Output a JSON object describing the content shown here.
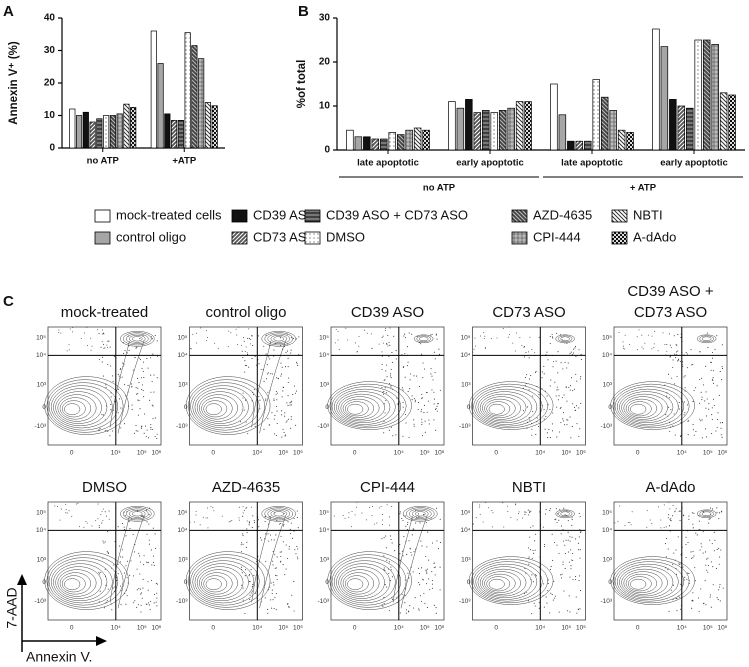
{
  "chart_data": [
    {
      "type": "bar",
      "panel": "A",
      "y_label": "Annexin V⁺ (%)",
      "categories": [
        "no ATP",
        "+ATP"
      ],
      "ylim": [
        0,
        40
      ],
      "yticks": [
        0,
        10,
        20,
        30,
        40
      ],
      "legend": "bottom",
      "series": [
        {
          "name": "mock-treated cells",
          "color": "#ffffff",
          "pattern": "none",
          "pattern_color": "#000000",
          "values": [
            12,
            36
          ]
        },
        {
          "name": "control oligo",
          "color": "#a6a6a6",
          "pattern": "none",
          "pattern_color": "#000000",
          "values": [
            10,
            26
          ]
        },
        {
          "name": "CD39  ASO",
          "color": "#111111",
          "pattern": "none",
          "pattern_color": "#000000",
          "values": [
            11,
            10.5
          ]
        },
        {
          "name": "CD73 ASO",
          "color": "#555555",
          "pattern": "diagonal",
          "pattern_color": "#ffffff",
          "values": [
            8,
            8.5
          ]
        },
        {
          "name": "CD39 ASO + CD73  ASO",
          "color": "#777777",
          "pattern": "hstripe",
          "pattern_color": "#222222",
          "values": [
            9,
            8.5
          ]
        },
        {
          "name": "DMSO",
          "color": "#ffffff",
          "pattern": "dots",
          "pattern_color": "#444444",
          "values": [
            10,
            35.5
          ]
        },
        {
          "name": "AZD-4635",
          "color": "#444444",
          "pattern": "antidiagonal",
          "pattern_color": "#bbbbbb",
          "values": [
            10,
            31.5
          ]
        },
        {
          "name": "CPI-444",
          "color": "#bbbbbb",
          "pattern": "crosshatch",
          "pattern_color": "#444444",
          "values": [
            10.5,
            27.5
          ]
        },
        {
          "name": "NBTI",
          "color": "#ffffff",
          "pattern": "antidiagonal",
          "pattern_color": "#333333",
          "values": [
            13.5,
            14
          ]
        },
        {
          "name": "A-dAdo",
          "color": "#111111",
          "pattern": "check",
          "pattern_color": "#dddddd",
          "values": [
            12.5,
            13
          ]
        }
      ]
    },
    {
      "type": "bar",
      "panel": "B",
      "y_label": "%of total",
      "categories": [
        "late apoptotic",
        "early apoptotic",
        "late apoptotic",
        "early apoptotic"
      ],
      "groups": [
        "no ATP",
        "+ ATP"
      ],
      "ylim": [
        0,
        30
      ],
      "yticks": [
        0,
        10,
        20,
        30
      ],
      "series": [
        {
          "color": "#ffffff",
          "pattern": "none",
          "pattern_color": "#000000",
          "values": [
            4.5,
            11,
            15,
            27.5
          ]
        },
        {
          "color": "#a6a6a6",
          "pattern": "none",
          "pattern_color": "#000000",
          "values": [
            3,
            9.5,
            8,
            23.5
          ]
        },
        {
          "color": "#111111",
          "pattern": "none",
          "pattern_color": "#000000",
          "values": [
            3,
            11.5,
            2,
            11.5
          ]
        },
        {
          "color": "#555555",
          "pattern": "diagonal",
          "pattern_color": "#ffffff",
          "values": [
            2.5,
            8.5,
            2,
            10
          ]
        },
        {
          "color": "#777777",
          "pattern": "hstripe",
          "pattern_color": "#222222",
          "values": [
            2.5,
            9,
            2,
            9.5
          ]
        },
        {
          "color": "#ffffff",
          "pattern": "dots",
          "pattern_color": "#444444",
          "values": [
            4,
            8.5,
            16,
            25
          ]
        },
        {
          "color": "#444444",
          "pattern": "antidiagonal",
          "pattern_color": "#bbbbbb",
          "values": [
            3.5,
            9,
            12,
            25
          ]
        },
        {
          "color": "#bbbbbb",
          "pattern": "crosshatch",
          "pattern_color": "#444444",
          "values": [
            4.5,
            9.5,
            9,
            24
          ]
        },
        {
          "color": "#ffffff",
          "pattern": "antidiagonal",
          "pattern_color": "#333333",
          "values": [
            5,
            11,
            4.5,
            13
          ]
        },
        {
          "color": "#111111",
          "pattern": "check",
          "pattern_color": "#dddddd",
          "values": [
            4.5,
            11,
            4,
            12.5
          ]
        }
      ]
    }
  ],
  "panel_c": {
    "panel": "C",
    "x_label": "Annexin V.",
    "y_label": "7-AAD",
    "y_tick_labels": [
      "10⁵",
      "10⁴",
      "10³",
      "0",
      "-10³"
    ],
    "x_tick_labels": [
      "0",
      "10⁴",
      "10⁵",
      "10⁶"
    ],
    "plots": [
      {
        "title": [
          "mock-treated"
        ]
      },
      {
        "title": [
          "control oligo"
        ]
      },
      {
        "title": [
          "CD39 ASO"
        ]
      },
      {
        "title": [
          "CD73 ASO"
        ]
      },
      {
        "title": [
          "CD39 ASO +",
          "CD73 ASO"
        ]
      },
      {
        "title": [
          "DMSO"
        ]
      },
      {
        "title": [
          "AZD-4635"
        ]
      },
      {
        "title": [
          "CPI-444"
        ]
      },
      {
        "title": [
          "NBTI"
        ]
      },
      {
        "title": [
          "A-dAdo"
        ]
      }
    ]
  }
}
